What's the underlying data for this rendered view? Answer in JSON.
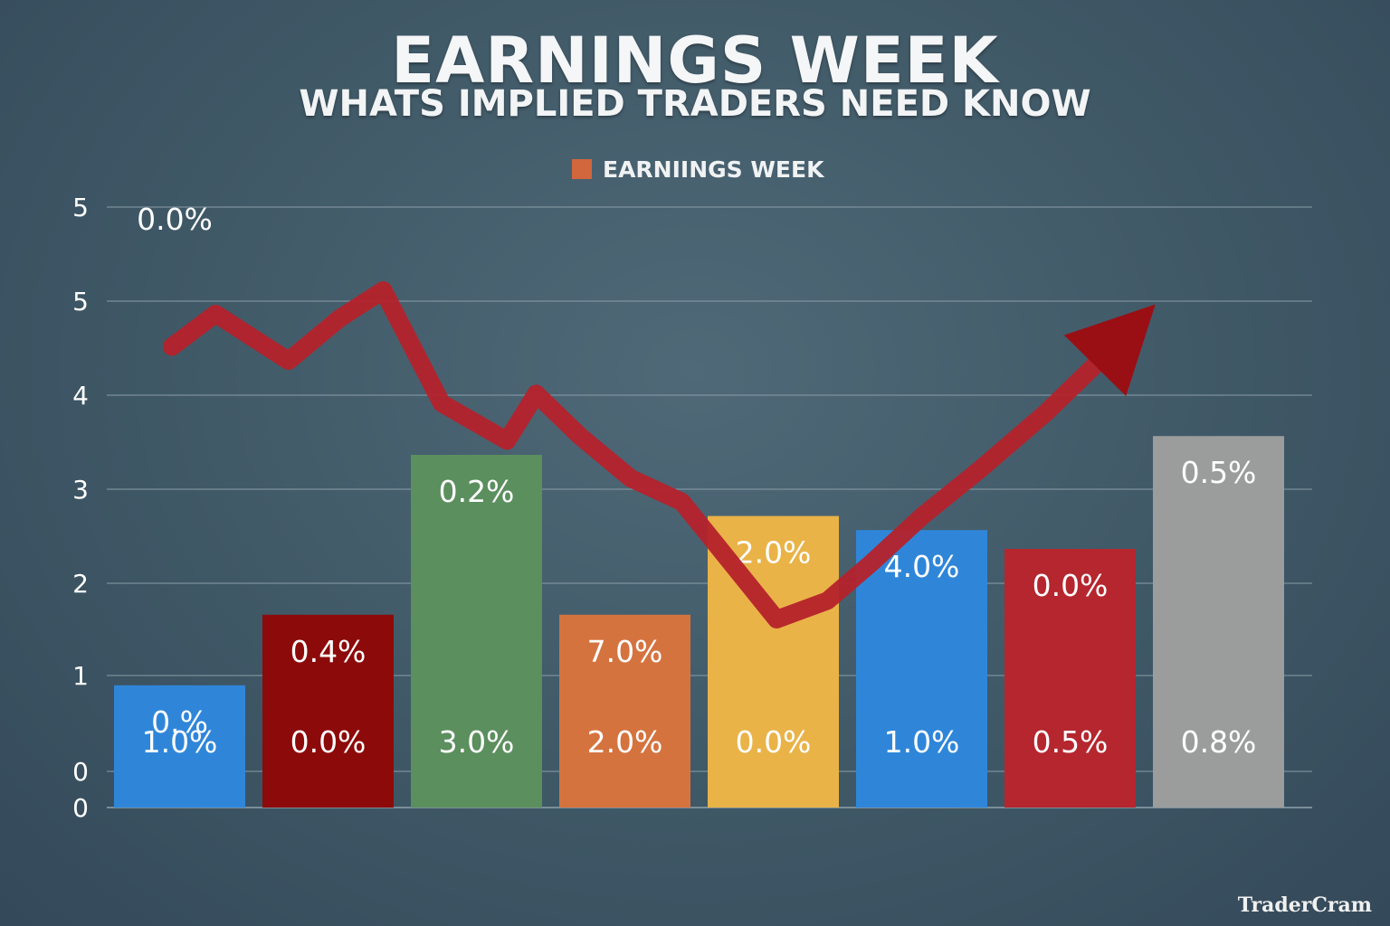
{
  "title": "EARNINGS WEEK",
  "subtitle": "WHATS IMPLIED TRADERS NEED KNOW",
  "legend_label": "EARNIINGS WEEK",
  "watermark": "TraderCram",
  "chart_data": {
    "type": "bar",
    "y_tick_labels": [
      "0",
      "0",
      "1",
      "2",
      "3",
      "4",
      "5",
      "5"
    ],
    "grid": true,
    "legend": "top-center",
    "bars": [
      {
        "color": "#2f86d9",
        "value": 1.3,
        "label_top": "0.%",
        "label_bottom": "1.0%"
      },
      {
        "color": "#8d0a0a",
        "value": 2.05,
        "label_top": "0.4%",
        "label_bottom": "0.0%"
      },
      {
        "color": "#5b8f5e",
        "value": 3.75,
        "label_top": "0.2%",
        "label_bottom": "3.0%"
      },
      {
        "color": "#d5733f",
        "value": 2.05,
        "label_top": "7.0%",
        "label_bottom": "2.0%"
      },
      {
        "color": "#e9b348",
        "value": 3.1,
        "label_top": "2.0%",
        "label_bottom": "0.0%"
      },
      {
        "color": "#2f86d9",
        "value": 2.95,
        "label_top": "4.0%",
        "label_bottom": "1.0%"
      },
      {
        "color": "#b5262e",
        "value": 2.75,
        "label_top": "0.0%",
        "label_bottom": "0.5%"
      },
      {
        "color": "#9b9c9c",
        "value": 3.95,
        "label_top": "0.5%",
        "label_bottom": "0.8%"
      }
    ],
    "line": {
      "color": "#b5222b",
      "start_label": "0.0%",
      "points": [
        4.9,
        5.25,
        4.75,
        5.2,
        5.5,
        4.3,
        3.9,
        4.4,
        3.95,
        3.5,
        3.25,
        2.0,
        2.2,
        2.6,
        3.1,
        3.6,
        4.2,
        4.8
      ],
      "x_positions": [
        0.0,
        0.6,
        1.6,
        2.3,
        2.9,
        3.7,
        4.6,
        5.0,
        5.6,
        6.3,
        7.0,
        8.3,
        9.0,
        9.6,
        10.3,
        11.1,
        12.0,
        12.8
      ],
      "arrow_head": [
        13.5,
        5.35
      ]
    }
  }
}
